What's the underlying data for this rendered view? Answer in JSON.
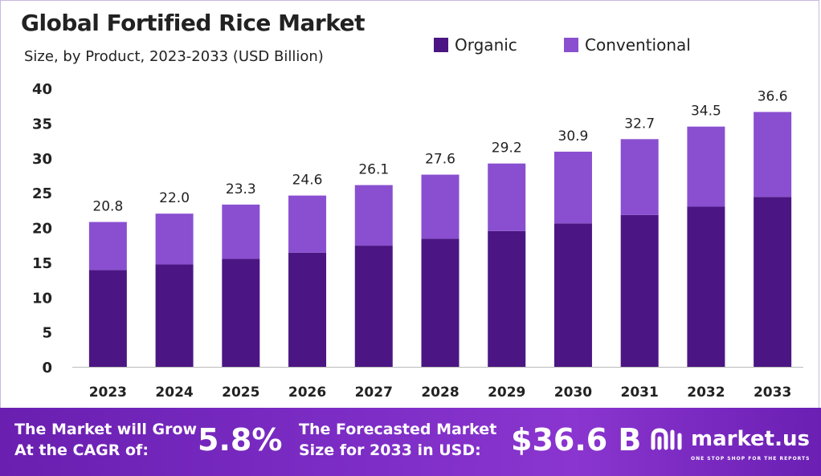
{
  "chart_data": {
    "type": "bar",
    "stacked": true,
    "title": "Global Fortified Rice Market",
    "subtitle": "Size, by Product, 2023-2033 (USD Billion)",
    "categories": [
      "2023",
      "2024",
      "2025",
      "2026",
      "2027",
      "2028",
      "2029",
      "2030",
      "2031",
      "2032",
      "2033"
    ],
    "series": [
      {
        "name": "Organic",
        "color": "#4b1683",
        "values": [
          13.9,
          14.7,
          15.5,
          16.4,
          17.4,
          18.4,
          19.5,
          20.6,
          21.8,
          23.0,
          24.4
        ]
      },
      {
        "name": "Conventional",
        "color": "#8a4fd0",
        "values": [
          6.9,
          7.3,
          7.8,
          8.2,
          8.7,
          9.2,
          9.7,
          10.3,
          10.9,
          11.5,
          12.2
        ]
      }
    ],
    "totals": [
      "20.8",
      "22.0",
      "23.3",
      "24.6",
      "26.1",
      "27.6",
      "29.2",
      "30.9",
      "32.7",
      "34.5",
      "36.6"
    ],
    "ylim": [
      0,
      40
    ],
    "yticks": [
      0,
      5,
      10,
      15,
      20,
      25,
      30,
      35,
      40
    ],
    "grid": false,
    "legend_position": "top-right"
  },
  "footer": {
    "cagr_label_line1": "The Market will Grow",
    "cagr_label_line2": "At the CAGR of:",
    "cagr_value": "5.8%",
    "forecast_label_line1": "The Forecasted Market",
    "forecast_label_line2": "Size for 2033 in USD:",
    "forecast_value": "$36.6 B",
    "brand_name": "market.us",
    "brand_tagline": "ONE STOP SHOP FOR THE REPORTS",
    "brand_icon": "market-us-logo-icon"
  }
}
